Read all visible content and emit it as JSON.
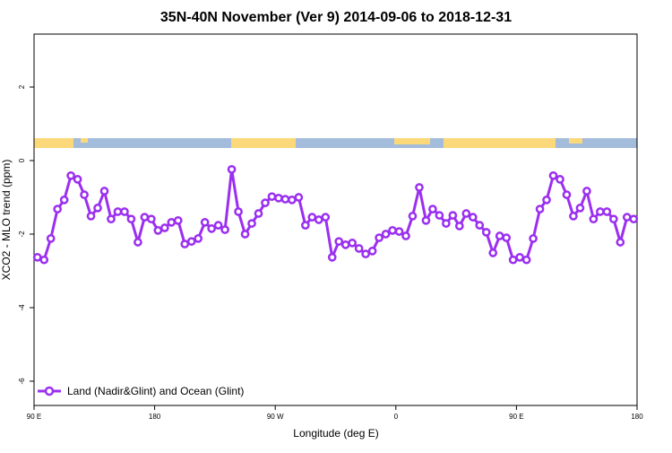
{
  "chart_data": {
    "type": "line",
    "title": "35N-40N November (Ver 9)   2014-09-06 to 2018-12-31",
    "x_label": "Longitude (deg E)",
    "y_label": "XCO2 - MLO trend (ppm)",
    "xlim": [
      90,
      540
    ],
    "xticks": [
      {
        "value": 90,
        "label": "90 E"
      },
      {
        "value": 180,
        "label": "180"
      },
      {
        "value": 270,
        "label": "90 W"
      },
      {
        "value": 360,
        "label": "0"
      },
      {
        "value": 450,
        "label": "90 E"
      },
      {
        "value": 540,
        "label": "180"
      }
    ],
    "ylim": [
      -6.66,
      3.44
    ],
    "yticks": [
      -6,
      -4,
      -2,
      0,
      2
    ],
    "grid": false,
    "legend": "lower left",
    "x": [
      92.5,
      97.5,
      102.5,
      107.5,
      112.5,
      117.5,
      122.5,
      127.5,
      132.5,
      137.5,
      142.5,
      147.5,
      152.5,
      157.5,
      162.5,
      167.5,
      172.5,
      177.5,
      182.5,
      187.5,
      192.5,
      197.5,
      202.5,
      207.5,
      212.5,
      217.5,
      222.5,
      227.5,
      232.5,
      237.5,
      242.5,
      247.5,
      252.5,
      257.5,
      262.5,
      267.5,
      272.5,
      277.5,
      282.5,
      287.5,
      292.5,
      297.5,
      302.5,
      307.5,
      312.5,
      317.5,
      322.5,
      327.5,
      332.5,
      337.5,
      342.5,
      347.5,
      352.5,
      357.5,
      362.5,
      367.5,
      372.5,
      377.5,
      382.5,
      387.5,
      392.5,
      397.5,
      402.5,
      407.5,
      412.5,
      417.5,
      422.5,
      427.5,
      432.5,
      437.5,
      442.5,
      447.5,
      452.5,
      457.5,
      462.5,
      467.5,
      472.5,
      477.5,
      482.5,
      487.5,
      492.5,
      497.5,
      502.5,
      507.5,
      512.5,
      517.5,
      522.5,
      527.5,
      532.5,
      537.5
    ],
    "series": [
      {
        "name": "Land (Nadir&Glint) and Ocean (Glint)",
        "color": "#9b2ff0",
        "values": [
          -2.63,
          -2.7,
          -2.12,
          -1.32,
          -1.07,
          -0.41,
          -0.51,
          -0.93,
          -1.51,
          -1.29,
          -0.83,
          -1.59,
          -1.39,
          -1.39,
          -1.59,
          -2.22,
          -1.54,
          -1.59,
          -1.9,
          -1.83,
          -1.68,
          -1.63,
          -2.27,
          -2.2,
          -2.12,
          -1.68,
          -1.85,
          -1.76,
          -1.88,
          -0.24,
          -1.39,
          -2.0,
          -1.71,
          -1.44,
          -1.15,
          -0.98,
          -1.02,
          -1.05,
          -1.07,
          -1.0,
          -1.76,
          -1.54,
          -1.61,
          -1.54,
          -2.63,
          -2.2,
          -2.29,
          -2.24,
          -2.39,
          -2.54,
          -2.46,
          -2.1,
          -2.0,
          -1.9,
          -1.93,
          -2.05,
          -1.51,
          -0.73,
          -1.63,
          -1.32,
          -1.49,
          -1.71,
          -1.49,
          -1.78,
          -1.44,
          -1.54,
          -1.76,
          -1.95,
          -2.51,
          -2.05,
          -2.1,
          -2.7,
          -2.63,
          -2.7,
          -2.12,
          -1.32,
          -1.07,
          -0.41,
          -0.51,
          -0.93,
          -1.51,
          -1.29,
          -0.83,
          -1.59,
          -1.39,
          -1.39,
          -1.59,
          -2.22,
          -1.54,
          -1.59
        ]
      }
    ]
  }
}
